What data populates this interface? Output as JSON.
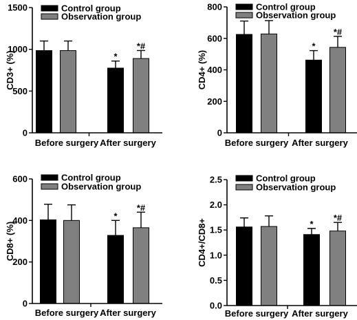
{
  "chart_data": [
    {
      "type": "bar",
      "ylabel": "CD3+ (%)",
      "categories": [
        "Before surgery",
        "After surgery"
      ],
      "ylim": [
        0,
        1500
      ],
      "yticks": [
        0,
        500,
        1000,
        1500
      ],
      "series": [
        {
          "name": "Control group",
          "color": "#000000",
          "values": [
            985,
            775
          ],
          "errors": [
            115,
            85
          ],
          "sig": [
            "",
            "*"
          ]
        },
        {
          "name": "Observation group",
          "color": "#808080",
          "values": [
            985,
            890
          ],
          "errors": [
            115,
            95
          ],
          "sig": [
            "",
            "*#"
          ]
        }
      ]
    },
    {
      "type": "bar",
      "ylabel": "CD4+ (%)",
      "categories": [
        "Before surgery",
        "After surgery"
      ],
      "ylim": [
        0,
        800
      ],
      "yticks": [
        0,
        200,
        400,
        600,
        800
      ],
      "series": [
        {
          "name": "Control group",
          "color": "#000000",
          "values": [
            625,
            462
          ],
          "errors": [
            85,
            60
          ],
          "sig": [
            "",
            "*"
          ]
        },
        {
          "name": "Observation group",
          "color": "#808080",
          "values": [
            628,
            543
          ],
          "errors": [
            85,
            70
          ],
          "sig": [
            "",
            "*#"
          ]
        }
      ]
    },
    {
      "type": "bar",
      "ylabel": "CD8+ (%)",
      "categories": [
        "Before surgery",
        "After surgery"
      ],
      "ylim": [
        0,
        600
      ],
      "yticks": [
        0,
        200,
        400,
        600
      ],
      "series": [
        {
          "name": "Control group",
          "color": "#000000",
          "values": [
            403,
            328
          ],
          "errors": [
            75,
            72
          ],
          "sig": [
            "",
            "*"
          ]
        },
        {
          "name": "Observation group",
          "color": "#808080",
          "values": [
            400,
            365
          ],
          "errors": [
            75,
            75
          ],
          "sig": [
            "",
            "*#"
          ]
        }
      ]
    },
    {
      "type": "bar",
      "ylabel": "CD4+/CD8+",
      "categories": [
        "Before surgery",
        "After surgery"
      ],
      "ylim": [
        0,
        2.5
      ],
      "yticks": [
        0.0,
        0.5,
        1.0,
        1.5,
        2.0,
        2.5
      ],
      "ytick_labels": [
        "0.0",
        "0.5",
        "1.0",
        "1.5",
        "2.0",
        "2.5"
      ],
      "series": [
        {
          "name": "Control group",
          "color": "#000000",
          "values": [
            1.56,
            1.41
          ],
          "errors": [
            0.18,
            0.12
          ],
          "sig": [
            "",
            "*"
          ]
        },
        {
          "name": "Observation group",
          "color": "#808080",
          "values": [
            1.57,
            1.48
          ],
          "errors": [
            0.21,
            0.17
          ],
          "sig": [
            "",
            "*#"
          ]
        }
      ]
    }
  ]
}
